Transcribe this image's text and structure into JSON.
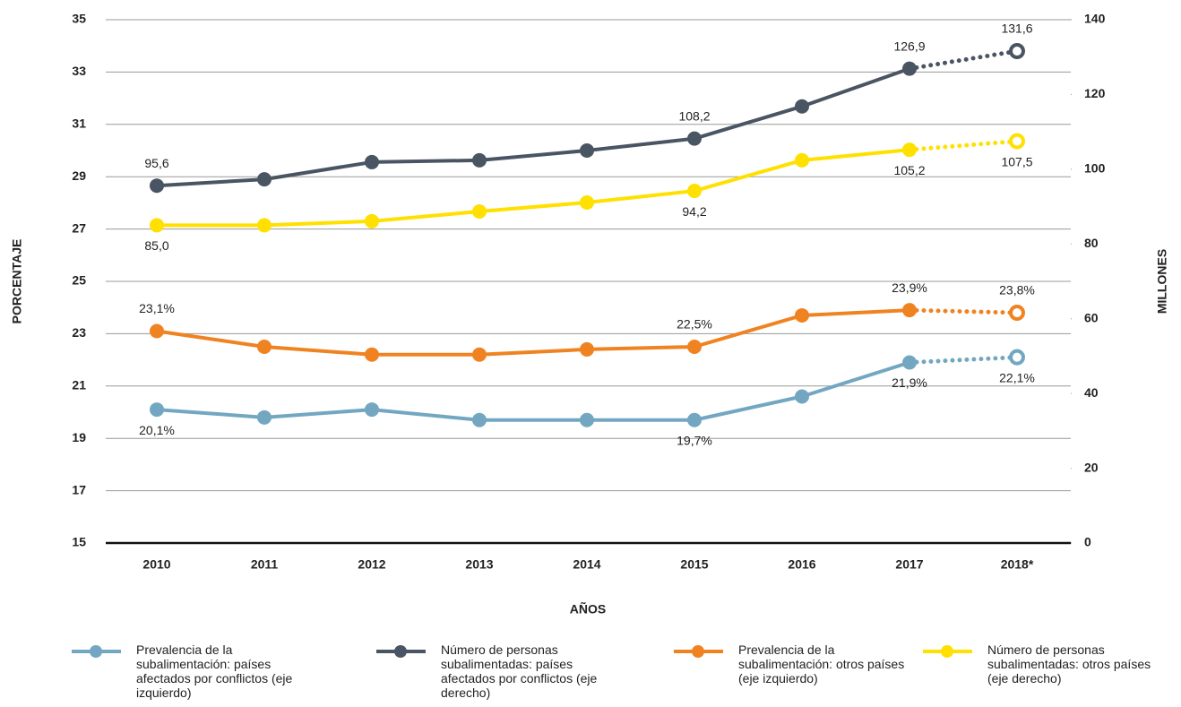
{
  "chart_data": {
    "type": "line",
    "categories": [
      "2010",
      "2011",
      "2012",
      "2013",
      "2014",
      "2015",
      "2016",
      "2017",
      "2018*"
    ],
    "projected": [
      false,
      false,
      false,
      false,
      false,
      false,
      false,
      false,
      true
    ],
    "ylabel": "PORCENTAJE",
    "y2label": "MILLONES",
    "xlabel": "AÑOS",
    "ylim": [
      15,
      35
    ],
    "yticks": [
      15,
      17,
      19,
      21,
      23,
      25,
      27,
      29,
      31,
      33,
      35
    ],
    "y2lim": [
      0,
      140
    ],
    "y2ticks": [
      0,
      20,
      40,
      60,
      80,
      100,
      120,
      140
    ],
    "grid": true,
    "series": [
      {
        "name": "Prevalencia de la subalimentación: países afectados por conflictos (eje izquierdo)",
        "color": "#73a7c1",
        "axis": "y",
        "values": [
          20.1,
          19.8,
          20.1,
          19.7,
          19.7,
          19.7,
          20.6,
          21.9,
          22.1
        ],
        "value_labels": [
          "20,1%",
          null,
          null,
          null,
          null,
          "19,7%",
          null,
          "21,9%",
          "22,1%"
        ]
      },
      {
        "name": "Número de personas subalimentadas: países afectados por conflictos (eje derecho)",
        "color": "#4a5563",
        "axis": "y2",
        "values": [
          95.6,
          97.3,
          101.9,
          102.4,
          105.0,
          108.2,
          116.8,
          126.9,
          131.6
        ],
        "value_labels": [
          "95,6",
          null,
          null,
          null,
          null,
          "108,2",
          null,
          "126,9",
          "131,6"
        ]
      },
      {
        "name": "Prevalencia de la subalimentación: otros países (eje izquierdo)",
        "color": "#f08321",
        "axis": "y",
        "values": [
          23.1,
          22.5,
          22.2,
          22.2,
          22.4,
          22.5,
          23.7,
          23.9,
          23.8
        ],
        "value_labels": [
          "23,1%",
          null,
          null,
          null,
          null,
          "22,5%",
          null,
          "23,9%",
          "23,8%"
        ]
      },
      {
        "name": "Número de personas subalimentadas: otros países (eje derecho)",
        "color": "#ffe000",
        "axis": "y2",
        "values": [
          85.0,
          85.0,
          86.1,
          88.7,
          91.1,
          94.2,
          102.4,
          105.2,
          107.5
        ],
        "value_labels": [
          "85,0",
          null,
          null,
          null,
          null,
          "94,2",
          null,
          "105,2",
          "107,5"
        ]
      }
    ]
  }
}
